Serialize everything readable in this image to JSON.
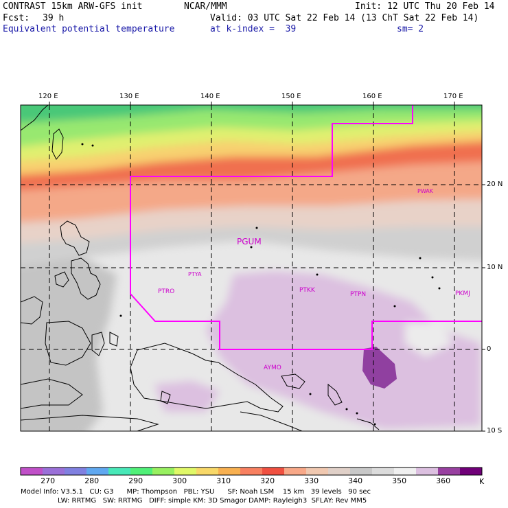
{
  "header": {
    "model": "CONTRAST 15km ARW-GFS init",
    "org": "NCAR/MMM",
    "init": "Init: 12 UTC Thu 20 Feb 14",
    "fcst_label": "Fcst:",
    "fcst_value": "39 h",
    "valid": "Valid: 03 UTC Sat 22 Feb 14 (13 ChT Sat 22 Feb 14)",
    "variable": "Equivalent potential temperature",
    "level": "at k-index =  39",
    "smoothing": "sm= 2"
  },
  "axes": {
    "lon_labels": [
      "120 E",
      "130 E",
      "140 E",
      "150 E",
      "160 E",
      "170 E"
    ],
    "lat_labels": [
      "20 N",
      "10 N",
      "0",
      "10 S"
    ]
  },
  "stations": [
    "PGUM",
    "PTYA",
    "PTRO",
    "PTKK",
    "PTPN",
    "PKMJ",
    "PWAK",
    "AYMO"
  ],
  "colorbar": {
    "unit": "K",
    "tick_labels": [
      "270",
      "280",
      "290",
      "300",
      "310",
      "320",
      "330",
      "340",
      "350",
      "360"
    ],
    "colors": [
      "#c050c8",
      "#9a70d8",
      "#8080e0",
      "#60a8f0",
      "#48e8b8",
      "#50f078",
      "#98f060",
      "#e0f868",
      "#f8d868",
      "#f8b050",
      "#f88060",
      "#f05040",
      "#f8a888",
      "#f0c8b0",
      "#e0d0c8",
      "#c8c8c8",
      "#dcdcdc",
      "#f0f0f0",
      "#dcc0e0",
      "#9840a0",
      "#700078"
    ]
  },
  "footer": {
    "line1": "Model Info: V3.5.1   CU: G3      MP: Thompson   PBL: YSU      SF: Noah LSM    15 km   39 levels   90 sec",
    "line2": "LW: RRTMG   SW: RRTMG   DIFF: simple KM: 3D Smagor DAMP: Rayleigh3  SFLAY: Rev MM5"
  }
}
